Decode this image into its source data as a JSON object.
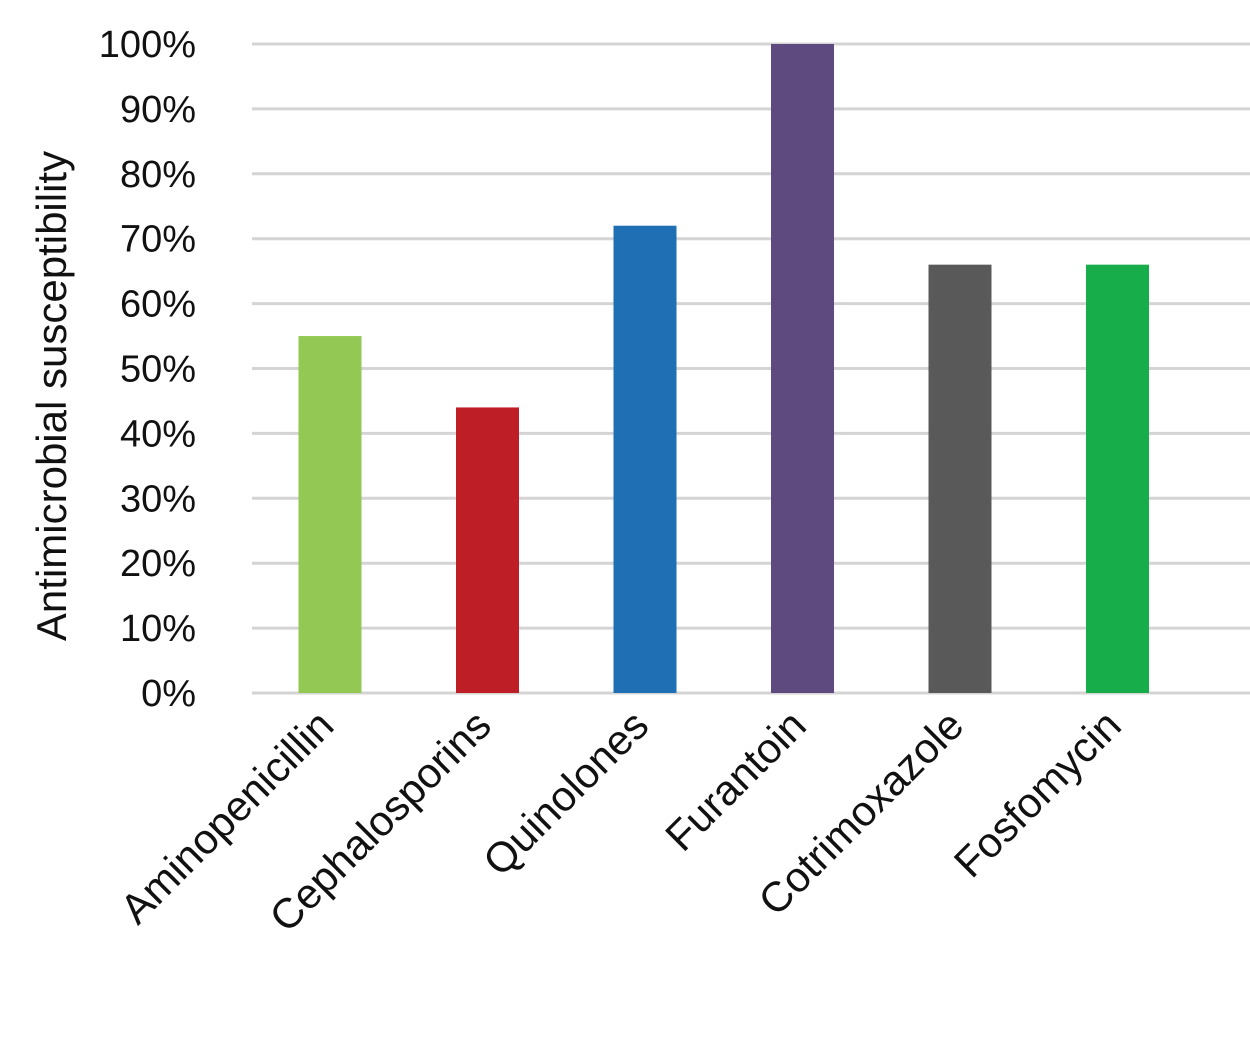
{
  "chart_data": {
    "type": "bar",
    "title": "",
    "xlabel": "",
    "ylabel": "Antimicrobial susceptibility",
    "categories": [
      "Aminopenicillin",
      "Cephalosporins",
      "Quinolones",
      "Furantoin",
      "Cotrimoxazole",
      "Fosfomycin"
    ],
    "values": [
      55,
      44,
      72,
      100,
      66,
      66
    ],
    "colors": [
      "#92c853",
      "#be1e25",
      "#1f6fb5",
      "#5e4a7e",
      "#595959",
      "#17ad4b"
    ],
    "ylim": [
      0,
      100
    ],
    "yticks": [
      0,
      10,
      20,
      30,
      40,
      50,
      60,
      70,
      80,
      90,
      100
    ],
    "ytick_labels": [
      "0%",
      "10%",
      "20%",
      "30%",
      "40%",
      "50%",
      "60%",
      "70%",
      "80%",
      "90%",
      "100%"
    ],
    "grid": true,
    "legend": "none"
  }
}
